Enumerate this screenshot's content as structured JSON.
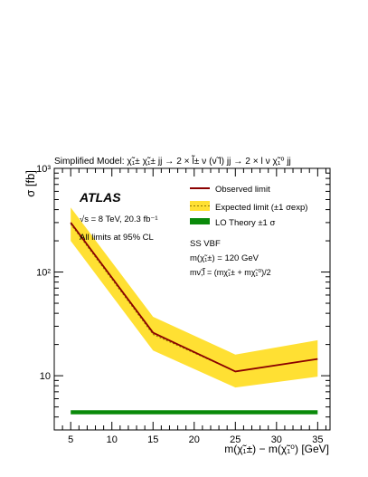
{
  "chart_data": {
    "type": "line",
    "title": "Simplified Model: χ̃₁± χ̃₁± jj → 2 × l̃± ν (ν̃ l) jj → 2 × l ν χ̃₁⁰ jj",
    "xlabel": "m(χ̃₁±) − m(χ̃₁⁰) [GeV]",
    "ylabel": "σ [fb]",
    "xlim": [
      3,
      36.5
    ],
    "ylim": [
      3,
      1000
    ],
    "yscale": "log",
    "x_ticks": [
      5,
      10,
      15,
      20,
      25,
      30,
      35
    ],
    "y_ticks": [
      {
        "value": 10,
        "label": "10"
      },
      {
        "value": 100,
        "label": "10²"
      },
      {
        "value": 1000,
        "label": "10³"
      }
    ],
    "grid": false,
    "legend_position": "top-right",
    "x": [
      5,
      15,
      25,
      35
    ],
    "series": [
      {
        "name": "Observed limit",
        "color": "#8b0000",
        "values": [
          300,
          26,
          11,
          14.5
        ]
      },
      {
        "name": "Expected limit (±1 σexp)",
        "color": "#8b7500",
        "values": [
          290,
          25,
          11,
          14.5
        ],
        "band_low": [
          200,
          17.5,
          7.7,
          9.8
        ],
        "band_high": [
          420,
          37,
          16,
          22
        ],
        "band_color": "#ffe033"
      },
      {
        "name": "LO Theory ±1 σ",
        "color": "#0a8a0a",
        "values": [
          4.45,
          4.45,
          4.45,
          4.45
        ],
        "band_low": [
          4.25,
          4.25,
          4.25,
          4.25
        ],
        "band_high": [
          4.65,
          4.65,
          4.65,
          4.65
        ]
      }
    ],
    "annotations": {
      "experiment": "ATLAS",
      "energy": "√s = 8 TeV, 20.3 fb⁻¹",
      "cl": "All limits at 95% CL",
      "signal_region": "SS VBF",
      "mass": "m(χ̃₁±) = 120 GeV",
      "mass_relation": "mν̃,l̃ = (mχ̃₁± + mχ̃₁⁰)/2"
    }
  }
}
